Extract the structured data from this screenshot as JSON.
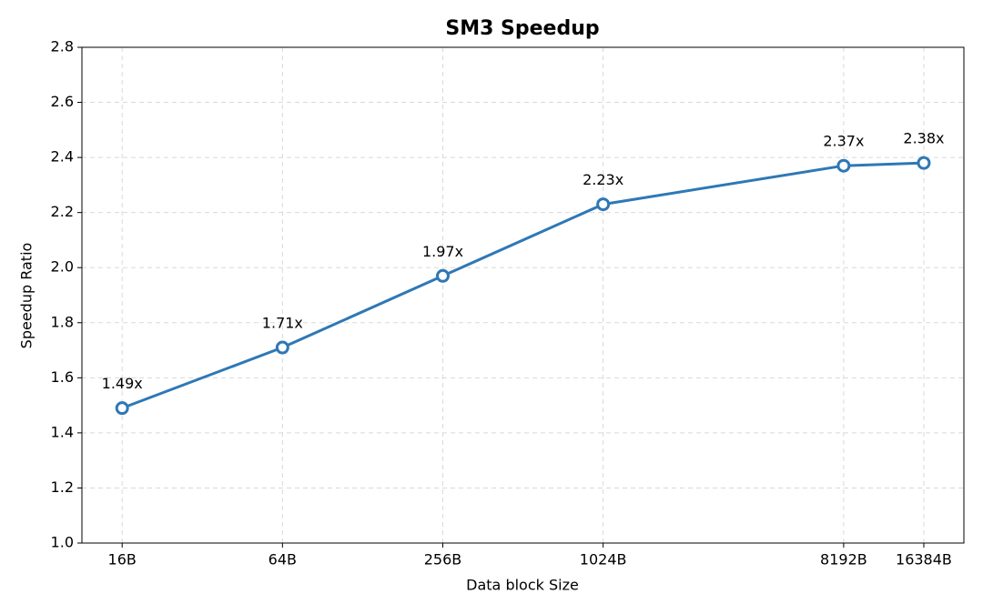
{
  "chart_data": {
    "type": "line",
    "title": "SM3 Speedup",
    "x_label": "Data block Size",
    "y_label": "Speedup Ratio",
    "x": [
      16,
      64,
      256,
      1024,
      8192,
      16384
    ],
    "values": [
      1.49,
      1.71,
      1.97,
      2.23,
      2.37,
      2.38
    ],
    "value_labels": [
      "1.49x",
      "1.71x",
      "1.97x",
      "2.23x",
      "2.37x",
      "2.38x"
    ],
    "color": "#2e78b6",
    "x_log_base": 2,
    "xlim": [
      11.3,
      23170
    ],
    "xticks": [
      {
        "value": 16,
        "label": "16B"
      },
      {
        "value": 64,
        "label": "64B"
      },
      {
        "value": 256,
        "label": "256B"
      },
      {
        "value": 1024,
        "label": "1024B"
      },
      {
        "value": 8192,
        "label": "8192B"
      },
      {
        "value": 16384,
        "label": "16384B"
      }
    ],
    "ylim": [
      1,
      2.8
    ],
    "yticks": [
      {
        "value": 1,
        "label": "1.0"
      },
      1.2,
      1.4,
      1.6,
      1.8,
      {
        "value": 2,
        "label": "2.0"
      },
      2.2,
      2.4,
      2.6,
      2.8
    ],
    "grid": true
  }
}
